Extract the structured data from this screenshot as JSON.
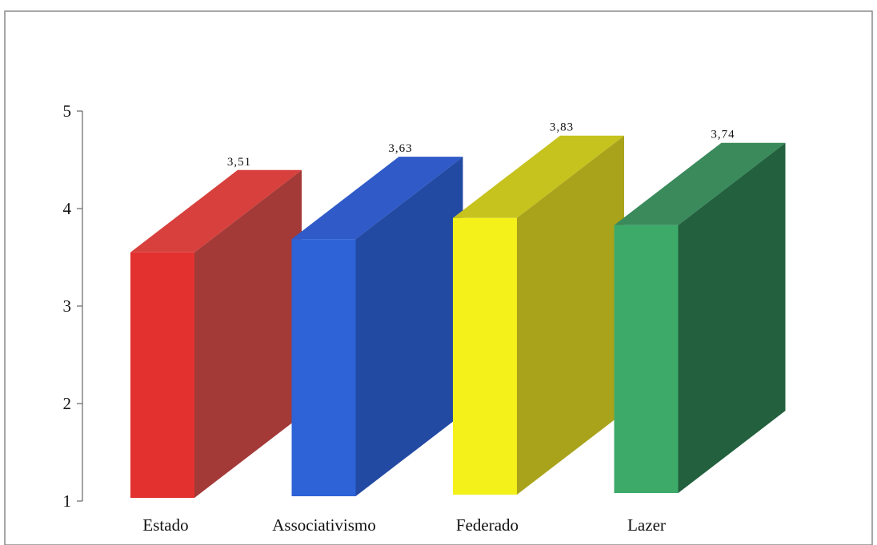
{
  "chart_data": {
    "type": "bar",
    "style": "3d-box",
    "categories": [
      "Estado",
      "Associativismo",
      "Federado",
      "Lazer"
    ],
    "values": [
      3.51,
      3.63,
      3.83,
      3.74
    ],
    "value_labels": [
      "3,51",
      "3,63",
      "3,83",
      "3,74"
    ],
    "ylim": [
      1,
      5
    ],
    "yticks": [
      1,
      2,
      3,
      4,
      5
    ],
    "ytick_labels": [
      "1",
      "2",
      "3",
      "4",
      "5"
    ],
    "title": "",
    "xlabel": "",
    "ylabel": "",
    "grid": false,
    "legend": "none",
    "colors": [
      {
        "front": "#e3312f",
        "side": "#a33a38",
        "top": "#d7403c"
      },
      {
        "front": "#2d63d6",
        "side": "#234aa3",
        "top": "#2f5ac8"
      },
      {
        "front": "#f4f11a",
        "side": "#a9a31c",
        "top": "#c6c21e"
      },
      {
        "front": "#3daa6a",
        "side": "#23603e",
        "top": "#3a8a5c"
      }
    ]
  }
}
